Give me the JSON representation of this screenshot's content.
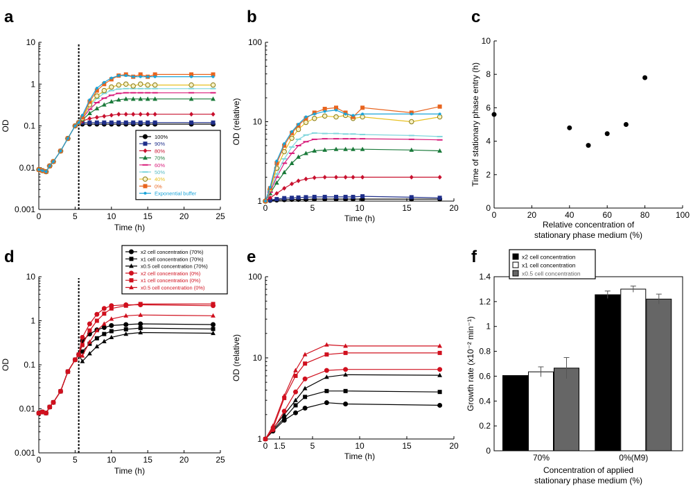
{
  "figure": {
    "background": "#ffffff",
    "colors": {
      "c100": "#000000",
      "c90": "#1f2f8a",
      "c80": "#c8102e",
      "c70": "#1a7a3a",
      "c60": "#d81b7a",
      "c50": "#7fd6dc",
      "c40": "#e8c020",
      "c0": "#e8641e",
      "exp": "#1aa3d8",
      "black": "#000000",
      "red": "#d0101e",
      "gray": "#666666"
    }
  },
  "chart_data": [
    {
      "id": "a",
      "panel_label": "a",
      "type": "line",
      "yscale": "log",
      "xlabel": "Time (h)",
      "ylabel": "OD",
      "xlim": [
        0,
        25
      ],
      "ylim": [
        0.001,
        10
      ],
      "xticks": [
        0,
        5,
        10,
        15,
        20,
        25
      ],
      "yticks": [
        0.001,
        0.01,
        0.1,
        1,
        10
      ],
      "yticklabels": [
        "0.001",
        "0.01",
        "0.1",
        "1",
        "10"
      ],
      "vline_x": 5.5,
      "base_series": {
        "x": [
          0,
          0.5,
          1,
          1.5,
          2,
          3,
          4,
          5,
          5.5
        ],
        "y": [
          0.009,
          0.0085,
          0.008,
          0.011,
          0.014,
          0.025,
          0.05,
          0.1,
          0.12
        ]
      },
      "tail_x": [
        6,
        7,
        8,
        9,
        10,
        11,
        12,
        13,
        14,
        15,
        16,
        21,
        24
      ],
      "series": [
        {
          "name": "100%",
          "color_key": "c100",
          "marker": "circle",
          "y": [
            0.11,
            0.11,
            0.11,
            0.11,
            0.11,
            0.11,
            0.11,
            0.11,
            0.11,
            0.11,
            0.11,
            0.11,
            0.11
          ]
        },
        {
          "name": "90%",
          "color_key": "c90",
          "marker": "square",
          "y": [
            0.12,
            0.12,
            0.12,
            0.12,
            0.12,
            0.12,
            0.12,
            0.12,
            0.12,
            0.12,
            0.12,
            0.12,
            0.12
          ]
        },
        {
          "name": "80%",
          "color_key": "c80",
          "marker": "diamond",
          "y": [
            0.13,
            0.15,
            0.16,
            0.17,
            0.18,
            0.19,
            0.19,
            0.19,
            0.19,
            0.19,
            0.19,
            0.19,
            0.19
          ]
        },
        {
          "name": "70%",
          "color_key": "c70",
          "marker": "triangle",
          "y": [
            0.14,
            0.2,
            0.26,
            0.32,
            0.38,
            0.42,
            0.44,
            0.44,
            0.44,
            0.44,
            0.44,
            0.44,
            0.44
          ]
        },
        {
          "name": "60%",
          "color_key": "c60",
          "marker": "dash",
          "y": [
            0.15,
            0.25,
            0.36,
            0.46,
            0.54,
            0.6,
            0.62,
            0.62,
            0.62,
            0.62,
            0.62,
            0.62,
            0.62
          ]
        },
        {
          "name": "50%",
          "color_key": "c50",
          "marker": "dash",
          "y": [
            0.15,
            0.3,
            0.45,
            0.6,
            0.7,
            0.76,
            0.78,
            0.78,
            0.78,
            0.78,
            0.78,
            0.78,
            0.78
          ]
        },
        {
          "name": "40%",
          "color_key": "c40",
          "marker": "open-circle",
          "y": [
            0.15,
            0.32,
            0.52,
            0.7,
            0.85,
            0.95,
            1.0,
            0.9,
            1.0,
            0.95,
            0.95,
            0.95,
            0.95
          ]
        },
        {
          "name": "0%",
          "color_key": "c0",
          "marker": "square",
          "y": [
            0.16,
            0.38,
            0.7,
            1.0,
            1.3,
            1.6,
            1.7,
            1.5,
            1.7,
            1.5,
            1.7,
            1.7,
            1.7
          ]
        },
        {
          "name": "Exponential buffer",
          "color_key": "exp",
          "marker": "dot",
          "y": [
            0.18,
            0.42,
            0.8,
            1.1,
            1.4,
            1.6,
            1.6,
            1.5,
            1.5,
            1.5,
            1.5,
            1.5,
            1.5
          ]
        }
      ],
      "legend": "bottom-right"
    },
    {
      "id": "b",
      "panel_label": "b",
      "type": "line",
      "yscale": "log",
      "xlabel": "Time (h)",
      "ylabel": "OD (relative)",
      "xlim": [
        0,
        20
      ],
      "ylim": [
        1,
        100
      ],
      "xticks": [
        0,
        5,
        10,
        15,
        20
      ],
      "yticks": [
        1,
        10,
        100
      ],
      "yticklabels": [
        "1",
        "10",
        "100"
      ],
      "x": [
        0,
        0.5,
        1.2,
        2,
        2.8,
        3.5,
        4.3,
        5.2,
        6.3,
        7.5,
        8.5,
        9.3,
        10.3,
        15.5,
        18.5
      ],
      "series": [
        {
          "name": "100%",
          "color_key": "c100",
          "marker": "circle",
          "y": [
            1,
            1.02,
            1.03,
            1.04,
            1.05,
            1.05,
            1.05,
            1.06,
            1.06,
            1.06,
            1.06,
            1.06,
            1.06,
            1.06,
            1.06
          ]
        },
        {
          "name": "90%",
          "color_key": "c90",
          "marker": "square",
          "y": [
            1,
            1.03,
            1.06,
            1.09,
            1.1,
            1.11,
            1.12,
            1.13,
            1.13,
            1.13,
            1.13,
            1.13,
            1.15,
            1.12,
            1.1
          ]
        },
        {
          "name": "80%",
          "color_key": "c80",
          "marker": "diamond",
          "y": [
            1,
            1.1,
            1.25,
            1.45,
            1.65,
            1.8,
            1.9,
            1.97,
            2.0,
            2.0,
            2.0,
            2.0,
            2.0,
            2.0,
            2.0
          ]
        },
        {
          "name": "70%",
          "color_key": "c70",
          "marker": "triangle",
          "y": [
            1,
            1.25,
            1.7,
            2.3,
            3.0,
            3.6,
            4.0,
            4.3,
            4.4,
            4.5,
            4.5,
            4.5,
            4.5,
            4.4,
            4.3
          ]
        },
        {
          "name": "60%",
          "color_key": "c60",
          "marker": "dash",
          "y": [
            1,
            1.3,
            2.0,
            3.0,
            4.0,
            5.0,
            5.6,
            6.0,
            6.1,
            6.1,
            6.1,
            6.1,
            6.1,
            6.0,
            5.9
          ]
        },
        {
          "name": "50%",
          "color_key": "c50",
          "marker": "dash",
          "y": [
            1,
            1.35,
            2.2,
            3.4,
            4.8,
            6.0,
            6.8,
            7.2,
            7.1,
            7.1,
            7.0,
            7.0,
            6.9,
            6.7,
            6.5
          ]
        },
        {
          "name": "40%",
          "color_key": "c40",
          "marker": "open-circle",
          "y": [
            1,
            1.4,
            2.6,
            4.2,
            6.2,
            8.0,
            9.8,
            11.0,
            11.8,
            11.5,
            12.0,
            11.0,
            11.5,
            10.0,
            11.5
          ]
        },
        {
          "name": "0%",
          "color_key": "c0",
          "marker": "square",
          "y": [
            1,
            1.45,
            3.0,
            5.0,
            7.2,
            9.0,
            11.0,
            13.0,
            14.5,
            15.0,
            13.0,
            11.5,
            15.0,
            13.0,
            15.5
          ]
        },
        {
          "name": "Exponential buffer",
          "color_key": "exp",
          "marker": "dot",
          "y": [
            1,
            1.5,
            3.2,
            5.3,
            7.5,
            9.3,
            11.5,
            12.5,
            13.5,
            14.0,
            12.5,
            12.0,
            12.5,
            12.5,
            12.5
          ]
        }
      ]
    },
    {
      "id": "c",
      "panel_label": "c",
      "type": "scatter",
      "xlabel": "Relative concentration of stationary phase medium (%)",
      "xlabel_lines": [
        "Relative concentration of",
        "stationary phase medium (%)"
      ],
      "ylabel": "Time of stationary phase entry (h)",
      "xlim": [
        0,
        100
      ],
      "ylim": [
        0,
        10
      ],
      "xticks": [
        0,
        20,
        40,
        60,
        80,
        100
      ],
      "yticks": [
        0,
        2,
        4,
        6,
        8,
        10
      ],
      "x": [
        0,
        40,
        50,
        60,
        70,
        80
      ],
      "y": [
        5.6,
        4.8,
        3.75,
        4.45,
        5.0,
        7.8
      ]
    },
    {
      "id": "d",
      "panel_label": "d",
      "type": "line",
      "yscale": "log",
      "xlabel": "Time (h)",
      "ylabel": "OD",
      "xlim": [
        0,
        25
      ],
      "ylim": [
        0.001,
        10
      ],
      "xticks": [
        0,
        5,
        10,
        15,
        20,
        25
      ],
      "yticks": [
        0.001,
        0.01,
        0.1,
        1,
        10
      ],
      "yticklabels": [
        "0.001",
        "0.01",
        "0.1",
        "1",
        "10"
      ],
      "vline_x": 5.5,
      "base_series": {
        "x": [
          0,
          0.5,
          1,
          1.5,
          2,
          3,
          4,
          5,
          5.5
        ],
        "y": [
          0.008,
          0.0085,
          0.008,
          0.011,
          0.014,
          0.025,
          0.07,
          0.13,
          0.17
        ]
      },
      "tail_x": [
        6,
        7,
        8,
        9,
        10,
        12,
        14,
        24
      ],
      "series": [
        {
          "name": "x2 cell concentration (70%)",
          "color_key": "black",
          "marker": "circle",
          "y": [
            0.35,
            0.5,
            0.62,
            0.7,
            0.78,
            0.82,
            0.85,
            0.82
          ]
        },
        {
          "name": "x1 cell concentration (70%)",
          "color_key": "black",
          "marker": "square",
          "y": [
            0.2,
            0.3,
            0.4,
            0.5,
            0.58,
            0.64,
            0.68,
            0.65
          ]
        },
        {
          "name": "x0.5 cell concentration (70%)",
          "color_key": "black",
          "marker": "triangle",
          "y": [
            0.12,
            0.18,
            0.26,
            0.34,
            0.42,
            0.5,
            0.54,
            0.52
          ]
        },
        {
          "name": "x2 cell concentration (0%)",
          "color_key": "red",
          "marker": "circle",
          "y": [
            0.42,
            0.85,
            1.4,
            1.9,
            2.2,
            2.3,
            2.3,
            2.2
          ]
        },
        {
          "name": "x1 cell concentration (0%)",
          "color_key": "red",
          "marker": "square",
          "y": [
            0.28,
            0.6,
            1.0,
            1.45,
            1.9,
            2.2,
            2.4,
            2.4
          ]
        },
        {
          "name": "x0.5 cell concentration (0%)",
          "color_key": "red",
          "marker": "triangle",
          "y": [
            0.16,
            0.33,
            0.6,
            0.85,
            1.1,
            1.3,
            1.35,
            1.3
          ]
        }
      ],
      "legend": "top-right"
    },
    {
      "id": "e",
      "panel_label": "e",
      "type": "line",
      "yscale": "log",
      "xlabel": "Time (h)",
      "ylabel": "OD (relative)",
      "xlim": [
        0,
        20
      ],
      "ylim": [
        1,
        100
      ],
      "xticks": [
        0,
        1.5,
        5,
        10,
        15,
        20
      ],
      "xticklabels": [
        "0",
        "1.5",
        "5",
        "10",
        "15",
        "20"
      ],
      "yticks": [
        1,
        10,
        100
      ],
      "yticklabels": [
        "1",
        "10",
        "100"
      ],
      "x": [
        0,
        0.8,
        2.0,
        3.2,
        4.2,
        6.5,
        8.5,
        18.5
      ],
      "series": [
        {
          "name": "x2 cell concentration (70%)",
          "color_key": "black",
          "marker": "circle",
          "y": [
            1,
            1.25,
            1.7,
            2.1,
            2.4,
            2.8,
            2.7,
            2.6
          ]
        },
        {
          "name": "x1 cell concentration (70%)",
          "color_key": "black",
          "marker": "square",
          "y": [
            1,
            1.3,
            1.8,
            2.6,
            3.3,
            3.9,
            3.9,
            3.8
          ]
        },
        {
          "name": "x0.5 cell concentration (70%)",
          "color_key": "black",
          "marker": "triangle",
          "y": [
            1,
            1.35,
            2.0,
            3.0,
            4.2,
            5.8,
            6.2,
            6.1
          ]
        },
        {
          "name": "x2 cell concentration (0%)",
          "color_key": "red",
          "marker": "circle",
          "y": [
            1,
            1.3,
            2.2,
            3.8,
            5.5,
            7.0,
            7.2,
            7.2
          ]
        },
        {
          "name": "x1 cell concentration (0%)",
          "color_key": "red",
          "marker": "square",
          "y": [
            1,
            1.35,
            3.2,
            6.0,
            8.5,
            11.0,
            11.5,
            11.5
          ]
        },
        {
          "name": "x0.5 cell concentration (0%)",
          "color_key": "red",
          "marker": "triangle",
          "y": [
            1,
            1.45,
            3.4,
            7.0,
            11.0,
            14.5,
            14.0,
            14.0
          ]
        }
      ]
    },
    {
      "id": "f",
      "panel_label": "f",
      "type": "bar",
      "xlabel": "Concentration of applied stationary phase medium (%)",
      "xlabel_lines": [
        "Concentration of applied",
        "stationary phase medium (%)"
      ],
      "ylabel": "Growth rate (x10⁻² min⁻¹)",
      "ylim": [
        0,
        1.4
      ],
      "yticks": [
        0,
        0.2,
        0.4,
        0.6,
        0.8,
        1,
        1.2,
        1.4
      ],
      "yticklabels": [
        "0",
        "0.2",
        "0.4",
        "0.6",
        "0.8",
        "1",
        "1.2",
        "1.4"
      ],
      "categories": [
        "70%",
        "0%(M9)"
      ],
      "series": [
        {
          "name": "x2 cell concentration",
          "fill": "#000000",
          "values": [
            0.605,
            1.255
          ],
          "errors": [
            0.0,
            0.03
          ]
        },
        {
          "name": "x1 cell concentration",
          "fill": "#ffffff",
          "values": [
            0.635,
            1.3
          ],
          "errors": [
            0.04,
            0.025
          ]
        },
        {
          "name": "x0.5 cell concentration",
          "fill": "#666666",
          "values": [
            0.665,
            1.22
          ],
          "errors": [
            0.085,
            0.04
          ]
        }
      ],
      "legend": "top-left"
    }
  ]
}
